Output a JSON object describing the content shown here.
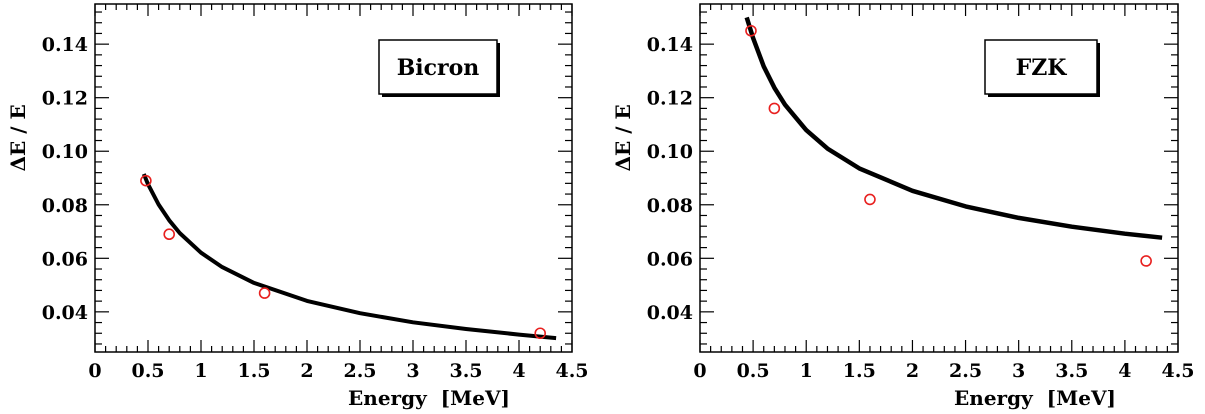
{
  "chart_data": [
    {
      "type": "scatter",
      "panel_label": "Bicron",
      "xlabel": "Energy  [MeV]",
      "ylabel": "ΔE / E",
      "xlim": [
        0,
        4.5
      ],
      "ylim": [
        0.025,
        0.155
      ],
      "x_ticks": [
        0,
        0.5,
        1,
        1.5,
        2,
        2.5,
        3,
        3.5,
        4,
        4.5
      ],
      "x_tick_labels": [
        "0",
        "0.5",
        "1",
        "1.5",
        "2",
        "2.5",
        "3",
        "3.5",
        "4",
        "4.5"
      ],
      "y_ticks": [
        0.04,
        0.06,
        0.08,
        0.1,
        0.12,
        0.14
      ],
      "y_tick_labels": [
        "0.04",
        "0.06",
        "0.08",
        "0.10",
        "0.12",
        "0.14"
      ],
      "series": [
        {
          "kind": "points",
          "marker": "open-circle",
          "color": "#e8201f",
          "x": [
            0.48,
            0.7,
            1.6,
            4.2
          ],
          "y": [
            0.089,
            0.069,
            0.047,
            0.032
          ]
        },
        {
          "kind": "fit-curve",
          "color": "#000000",
          "x": [
            0.46,
            0.5,
            0.6,
            0.7,
            0.8,
            1.0,
            1.2,
            1.5,
            2.0,
            2.5,
            3.0,
            3.5,
            4.0,
            4.35
          ],
          "y": [
            0.0915,
            0.0877,
            0.0801,
            0.0742,
            0.0694,
            0.0621,
            0.0567,
            0.0508,
            0.0441,
            0.0395,
            0.0361,
            0.0336,
            0.0315,
            0.0302
          ]
        }
      ]
    },
    {
      "type": "scatter",
      "panel_label": "FZK",
      "xlabel": "Energy  [MeV]",
      "ylabel": "ΔE / E",
      "xlim": [
        0,
        4.5
      ],
      "ylim": [
        0.025,
        0.155
      ],
      "x_ticks": [
        0,
        0.5,
        1,
        1.5,
        2,
        2.5,
        3,
        3.5,
        4,
        4.5
      ],
      "x_tick_labels": [
        "0",
        "0.5",
        "1",
        "1.5",
        "2",
        "2.5",
        "3",
        "3.5",
        "4",
        "4.5"
      ],
      "y_ticks": [
        0.04,
        0.06,
        0.08,
        0.1,
        0.12,
        0.14
      ],
      "y_tick_labels": [
        "0.04",
        "0.06",
        "0.08",
        "0.10",
        "0.12",
        "0.14"
      ],
      "series": [
        {
          "kind": "points",
          "marker": "open-circle",
          "color": "#e8201f",
          "x": [
            0.48,
            0.7,
            1.6,
            4.2
          ],
          "y": [
            0.145,
            0.116,
            0.082,
            0.059
          ]
        },
        {
          "kind": "fit-curve",
          "color": "#000000",
          "x": [
            0.44,
            0.5,
            0.6,
            0.7,
            0.8,
            1.0,
            1.2,
            1.5,
            2.0,
            2.5,
            3.0,
            3.5,
            4.0,
            4.35
          ],
          "y": [
            0.15,
            0.1423,
            0.1317,
            0.1237,
            0.1174,
            0.1079,
            0.101,
            0.0936,
            0.0852,
            0.0794,
            0.0751,
            0.0718,
            0.0692,
            0.0677
          ]
        }
      ]
    }
  ]
}
